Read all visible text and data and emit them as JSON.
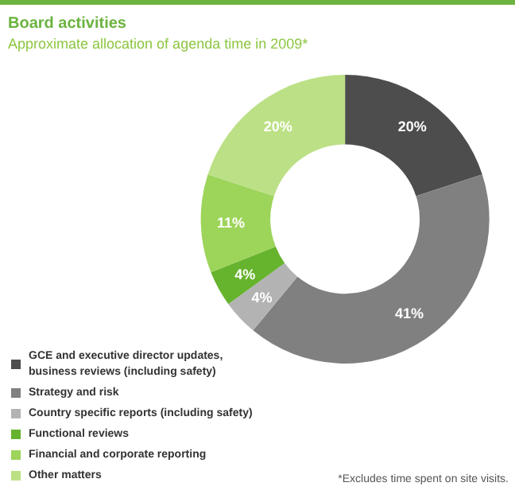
{
  "chart_data": {
    "type": "donut",
    "title": "Board activities",
    "subtitle": "Approximate allocation of agenda time in 2009*",
    "categories": [
      "GCE and executive director updates, business reviews (including safety)",
      "Strategy and risk",
      "Country specific reports (including safety)",
      "Functional reviews",
      "Financial and corporate reporting",
      "Other matters"
    ],
    "values": [
      20,
      41,
      4,
      4,
      11,
      20
    ],
    "colors": [
      "#4d4d4d",
      "#808080",
      "#b3b3b3",
      "#66b32e",
      "#9dd45a",
      "#bce085"
    ],
    "value_labels": [
      "20%",
      "41%",
      "4%",
      "4%",
      "11%",
      "20%"
    ],
    "legend": "bottom left",
    "annotations": [
      "*Excludes time spent on site visits."
    ]
  }
}
